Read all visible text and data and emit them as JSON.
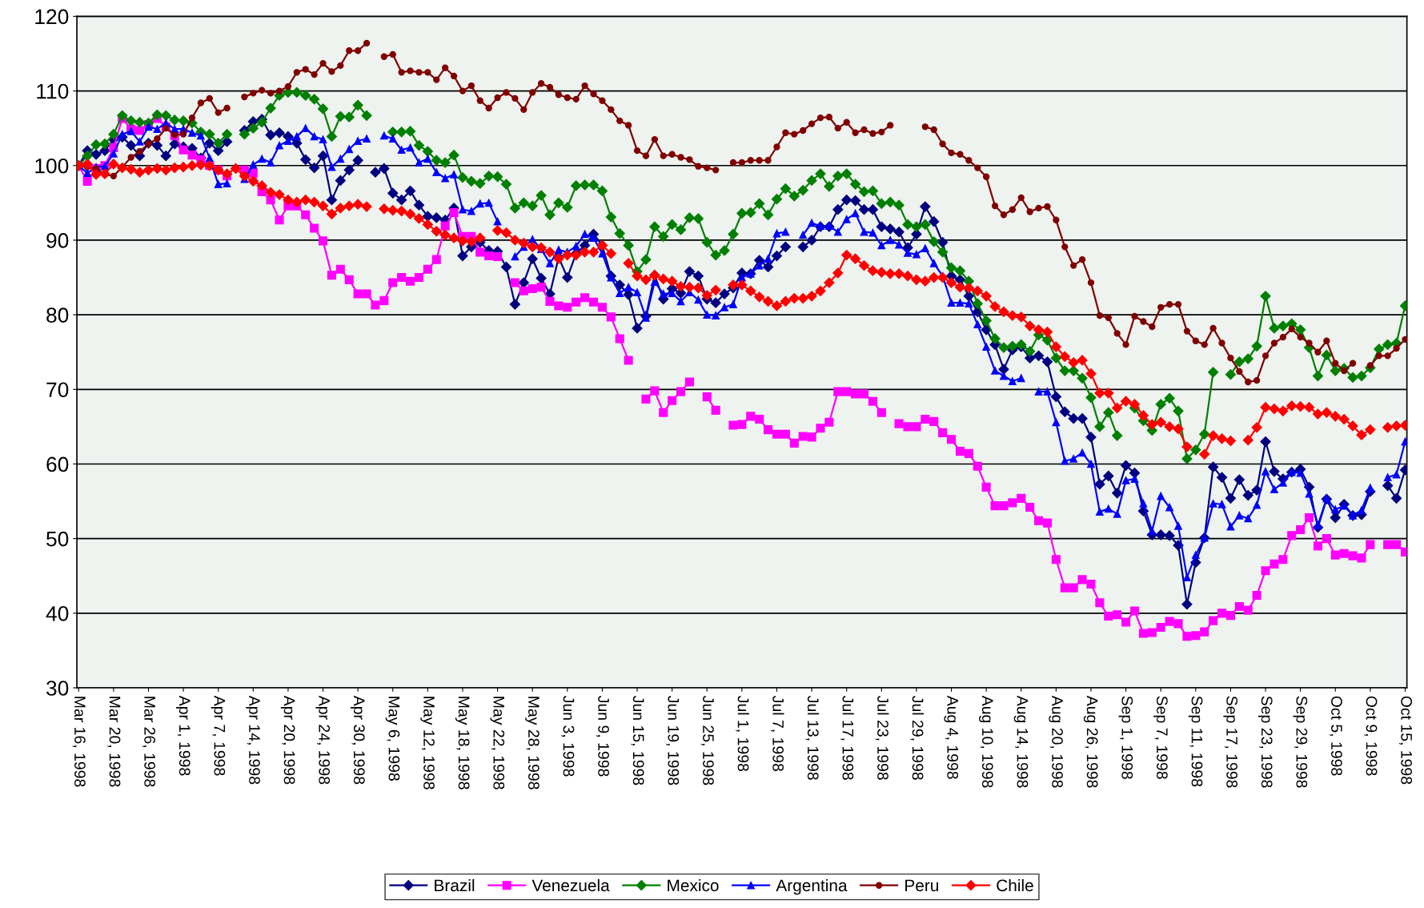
{
  "chart_data": {
    "type": "line",
    "categories": [
      "Mar 16, 1998",
      null,
      null,
      null,
      "Mar 20, 1998",
      null,
      null,
      null,
      "Mar 26, 1998",
      null,
      null,
      null,
      "Apr 1, 1998",
      null,
      null,
      null,
      "Apr 7, 1998",
      null,
      null,
      null,
      "Apr 14, 1998",
      null,
      null,
      null,
      "Apr 20, 1998",
      null,
      null,
      null,
      "Apr 24, 1998",
      null,
      null,
      null,
      "Apr 30, 1998",
      null,
      null,
      null,
      "May 6, 1998",
      null,
      null,
      null,
      "May 12, 1998",
      null,
      null,
      null,
      "May 18, 1998",
      null,
      null,
      null,
      "May 22, 1998",
      null,
      null,
      null,
      "May 28, 1998",
      null,
      null,
      null,
      "Jun 3, 1998",
      null,
      null,
      null,
      "Jun 9, 1998",
      null,
      null,
      null,
      "Jun 15, 1998",
      null,
      null,
      null,
      "Jun 19, 1998",
      null,
      null,
      null,
      "Jun 25, 1998",
      null,
      null,
      null,
      "Jul 1, 1998",
      null,
      null,
      null,
      "Jul 7, 1998",
      null,
      null,
      null,
      "Jul 13, 1998",
      null,
      null,
      null,
      "Jul 17, 1998",
      null,
      null,
      null,
      "Jul 23, 1998",
      null,
      null,
      null,
      "Jul 29, 1998",
      null,
      null,
      null,
      "Aug 4, 1998",
      null,
      null,
      null,
      "Aug 10, 1998",
      null,
      null,
      null,
      "Aug 14, 1998",
      null,
      null,
      null,
      "Aug 20, 1998",
      null,
      null,
      null,
      "Aug 26, 1998",
      null,
      null,
      null,
      "Sep 1, 1998",
      null,
      null,
      null,
      "Sep 7, 1998",
      null,
      null,
      null,
      "Sep 11, 1998",
      null,
      null,
      null,
      "Sep 17, 1998",
      null,
      null,
      null,
      "Sep 23, 1998",
      null,
      null,
      null,
      "Sep 29, 1998",
      null,
      null,
      null,
      "Oct 5, 1998",
      null,
      null,
      null,
      "Oct 9, 1998",
      null,
      null,
      null,
      "Oct 15, 1998"
    ],
    "series": [
      {
        "name": "Brazil",
        "color": "#000080",
        "marker": "diamond",
        "values": [
          100,
          102.0,
          101.5,
          102.0,
          103.5,
          103.8,
          102.7,
          101.3,
          103.0,
          102.7,
          101.3,
          102.9,
          102.5,
          102.3,
          101.0,
          103.0,
          102.0,
          103.2,
          null,
          104.7,
          105.9,
          106.2,
          104.1,
          104.4,
          103.9,
          103.0,
          100.8,
          99.7,
          101.3,
          95.4,
          98.0,
          99.4,
          100.7,
          null,
          99.1,
          99.6,
          96.3,
          95.4,
          96.6,
          94.7,
          93.2,
          93.0,
          92.7,
          94.3,
          87.9,
          89.1,
          89.7,
          88.6,
          88.5,
          86.4,
          81.4,
          84.3,
          87.5,
          84.9,
          82.8,
          87.7,
          85.0,
          88.2,
          89.3,
          90.8,
          89.3,
          85.2,
          84.0,
          82.7,
          78.2,
          79.8,
          85.3,
          82.1,
          83.5,
          82.9,
          85.8,
          85.2,
          82.1,
          81.6,
          82.8,
          83.6,
          85.6,
          85.5,
          87.3,
          86.4,
          87.9,
          89.1,
          null,
          89.1,
          90.0,
          91.8,
          91.8,
          94.1,
          95.4,
          95.3,
          94.1,
          94.1,
          91.8,
          91.5,
          91.1,
          89.0,
          90.8,
          94.5,
          92.5,
          89.7,
          85.2,
          84.7,
          82.5,
          80.4,
          78.0,
          76.0,
          72.7,
          75.3,
          75.7,
          74.2,
          74.5,
          73.7,
          69.0,
          67.0,
          66.1,
          66.1,
          63.6,
          57.3,
          58.4,
          56.1,
          59.8,
          58.8,
          53.7,
          50.5,
          50.5,
          50.4,
          49.1,
          41.2,
          46.8,
          50.1,
          59.6,
          58.2,
          55.4,
          57.9,
          55.8,
          56.5,
          63.0,
          59.0,
          58.0,
          58.9,
          59.3,
          56.9,
          51.5,
          55.3,
          52.8,
          54.6,
          53.1,
          53.2,
          56.3,
          null,
          57.1,
          55.4,
          59.2
        ]
      },
      {
        "name": "Venezuela",
        "color": "#ff00ff",
        "marker": "square",
        "values": [
          100,
          97.9,
          99.6,
          100.0,
          102.4,
          106.3,
          104.9,
          104.7,
          105.5,
          106.3,
          105.2,
          104.0,
          102.1,
          101.4,
          100.8,
          100.0,
          99.4,
          98.6,
          null,
          99.4,
          99.0,
          96.5,
          95.4,
          92.7,
          94.6,
          94.6,
          93.4,
          91.6,
          89.9,
          85.3,
          86.1,
          84.7,
          82.8,
          82.8,
          81.3,
          81.9,
          84.3,
          85.0,
          84.5,
          85.0,
          86.1,
          87.4,
          91.9,
          93.7,
          90.5,
          90.5,
          88.4,
          87.9,
          87.8,
          null,
          84.3,
          83.2,
          83.5,
          83.7,
          81.8,
          81.2,
          81.0,
          81.7,
          82.3,
          81.7,
          81.0,
          79.7,
          76.8,
          73.9,
          null,
          68.7,
          69.8,
          66.9,
          68.5,
          69.7,
          71.0,
          null,
          69.0,
          67.2,
          null,
          65.2,
          65.3,
          66.4,
          66.0,
          64.6,
          64.0,
          64.0,
          62.8,
          63.7,
          63.6,
          64.8,
          65.6,
          69.7,
          69.7,
          69.4,
          69.4,
          68.4,
          66.9,
          null,
          65.4,
          65.0,
          65.0,
          66.0,
          65.7,
          64.2,
          63.3,
          61.7,
          61.4,
          59.7,
          56.9,
          54.4,
          54.4,
          54.8,
          55.4,
          54.2,
          52.4,
          52.1,
          47.2,
          43.4,
          43.4,
          44.5,
          43.9,
          41.4,
          39.6,
          39.8,
          38.8,
          40.3,
          37.3,
          37.4,
          38.1,
          38.9,
          38.6,
          36.9,
          37.0,
          37.5,
          39.0,
          40.0,
          39.7,
          40.9,
          40.4,
          42.4,
          45.7,
          46.6,
          47.2,
          50.4,
          51.2,
          52.8,
          49.0,
          50.0,
          47.8,
          48.0,
          47.7,
          47.4,
          49.2,
          null,
          49.2,
          49.2,
          48.2
        ]
      },
      {
        "name": "Mexico",
        "color": "#008000",
        "marker": "diamond",
        "values": [
          100,
          101.3,
          102.8,
          102.9,
          104.2,
          106.7,
          106.0,
          105.8,
          105.7,
          106.8,
          106.7,
          106.1,
          106.0,
          105.7,
          104.5,
          104.2,
          103.0,
          104.2,
          null,
          104.2,
          105.0,
          105.8,
          107.7,
          109.4,
          109.8,
          109.8,
          109.4,
          108.9,
          107.6,
          103.9,
          106.6,
          106.5,
          108.1,
          106.7,
          null,
          null,
          104.5,
          104.5,
          104.6,
          102.7,
          101.9,
          100.7,
          100.4,
          101.4,
          98.4,
          97.9,
          97.6,
          98.6,
          98.5,
          97.5,
          94.3,
          95.0,
          94.6,
          96.0,
          93.4,
          95.0,
          94.4,
          97.3,
          97.4,
          97.4,
          96.6,
          93.1,
          90.9,
          89.3,
          85.8,
          87.4,
          91.8,
          90.5,
          92.1,
          91.4,
          93.0,
          92.9,
          89.7,
          88.0,
          88.6,
          90.8,
          93.6,
          93.7,
          94.9,
          93.4,
          95.5,
          96.9,
          95.9,
          96.7,
          98.0,
          98.9,
          97.2,
          98.6,
          98.9,
          97.5,
          96.5,
          96.6,
          94.9,
          95.1,
          94.7,
          92.1,
          91.8,
          92.1,
          89.8,
          88.4,
          86.3,
          85.9,
          84.5,
          81.5,
          79.2,
          76.8,
          75.6,
          75.8,
          76.0,
          75.1,
          77.3,
          76.6,
          74.2,
          72.5,
          72.5,
          71.5,
          68.9,
          65.0,
          66.9,
          63.8,
          null,
          67.5,
          65.8,
          64.5,
          68.0,
          68.8,
          67.1,
          60.7,
          61.9,
          64.0,
          72.3,
          null,
          72.0,
          73.7,
          74.1,
          75.8,
          82.5,
          78.2,
          78.5,
          78.8,
          78.0,
          75.6,
          71.8,
          74.6,
          72.5,
          72.8,
          71.6,
          71.8,
          72.9,
          75.4,
          76.0,
          76.2,
          81.2
        ]
      },
      {
        "name": "Argentina",
        "color": "#0000ff",
        "marker": "triangle",
        "values": [
          100,
          99.0,
          99.8,
          99.9,
          101.6,
          104.2,
          104.6,
          103.2,
          105.2,
          104.9,
          105.7,
          104.9,
          104.9,
          104.4,
          104.0,
          101.0,
          97.5,
          97.6,
          null,
          98.2,
          100.1,
          100.9,
          100.4,
          102.7,
          103.3,
          103.9,
          105.0,
          103.9,
          103.5,
          99.8,
          100.9,
          102.2,
          103.3,
          103.6,
          null,
          104.0,
          103.6,
          102.1,
          102.4,
          100.4,
          100.9,
          99.1,
          98.3,
          98.8,
          94.1,
          93.9,
          94.9,
          95.0,
          92.5,
          null,
          87.8,
          89.1,
          90.1,
          88.8,
          86.9,
          88.7,
          88.4,
          89.2,
          90.8,
          90.3,
          88.2,
          85.0,
          82.9,
          83.7,
          83.0,
          79.6,
          84.4,
          82.8,
          82.9,
          81.8,
          83.0,
          82.0,
          80.0,
          79.9,
          81.0,
          81.4,
          85.0,
          85.5,
          86.6,
          87.5,
          90.9,
          91.1,
          null,
          90.7,
          92.3,
          91.9,
          91.9,
          91.1,
          92.8,
          93.6,
          91.1,
          91.0,
          89.3,
          90.0,
          89.4,
          88.3,
          88.1,
          88.9,
          86.9,
          85.2,
          81.6,
          81.6,
          81.5,
          78.7,
          75.7,
          72.5,
          71.8,
          71.1,
          71.5,
          null,
          69.7,
          69.7,
          65.6,
          60.4,
          60.7,
          61.5,
          60.0,
          53.6,
          54.0,
          53.3,
          57.8,
          58.0,
          54.7,
          51.0,
          55.7,
          54.2,
          51.7,
          44.8,
          47.8,
          50.1,
          54.7,
          54.6,
          51.6,
          53.1,
          52.7,
          54.5,
          59.0,
          56.6,
          57.5,
          58.9,
          58.8,
          56.0,
          51.8,
          55.4,
          53.9,
          54.4,
          53.1,
          53.8,
          56.8,
          null,
          58.2,
          58.6,
          63.0
        ]
      },
      {
        "name": "Peru",
        "color": "#800000",
        "marker": "circle",
        "values": [
          100,
          99.8,
          99.6,
          98.8,
          98.6,
          99.8,
          101.1,
          101.9,
          102.9,
          103.6,
          105.0,
          104.1,
          104.2,
          106.4,
          108.4,
          109.0,
          107.1,
          107.7,
          null,
          109.2,
          109.7,
          110.1,
          109.7,
          110.0,
          110.6,
          112.5,
          112.9,
          112.2,
          113.7,
          112.6,
          113.4,
          115.4,
          115.4,
          116.4,
          null,
          114.6,
          114.9,
          112.5,
          112.7,
          112.5,
          112.5,
          111.5,
          113.1,
          112.0,
          110.0,
          110.7,
          108.7,
          107.7,
          109.1,
          109.8,
          109.0,
          107.5,
          109.8,
          111.0,
          110.5,
          109.5,
          109.1,
          108.9,
          110.7,
          109.6,
          108.7,
          107.5,
          106.0,
          105.4,
          102.0,
          101.3,
          103.5,
          101.3,
          101.5,
          101.1,
          100.8,
          99.9,
          99.7,
          99.4,
          null,
          100.4,
          100.4,
          100.7,
          100.7,
          100.7,
          102.5,
          104.4,
          104.2,
          104.7,
          105.6,
          106.4,
          106.5,
          105.0,
          105.8,
          104.4,
          104.8,
          104.3,
          104.5,
          105.4,
          null,
          null,
          null,
          105.2,
          104.8,
          102.9,
          101.7,
          101.5,
          100.7,
          99.7,
          98.5,
          94.6,
          93.4,
          94.1,
          95.7,
          93.8,
          94.3,
          94.5,
          92.7,
          89.1,
          86.6,
          87.4,
          84.3,
          79.9,
          79.6,
          77.5,
          76.0,
          79.8,
          79.1,
          78.4,
          81.0,
          81.4,
          81.4,
          77.8,
          76.5,
          76.0,
          78.2,
          76.2,
          74.2,
          72.4,
          71.0,
          71.2,
          74.5,
          76.2,
          77.0,
          78.1,
          77.0,
          76.2,
          75.0,
          76.5,
          73.5,
          72.5,
          73.5,
          null,
          73.2,
          74.5,
          74.5,
          75.5,
          76.7
        ]
      },
      {
        "name": "Chile",
        "color": "#ff0000",
        "marker": "diamond",
        "values": [
          100.0,
          100.2,
          98.8,
          98.9,
          100.2,
          99.7,
          99.5,
          99.1,
          99.4,
          99.6,
          99.4,
          99.7,
          99.8,
          100.0,
          100.1,
          100.0,
          99.4,
          98.9,
          99.6,
          98.6,
          97.9,
          97.3,
          96.4,
          96.1,
          95.4,
          95.1,
          95.4,
          95.1,
          94.6,
          93.5,
          94.3,
          94.6,
          94.8,
          94.5,
          null,
          94.2,
          94.0,
          93.9,
          93.5,
          92.9,
          92.1,
          91.2,
          90.7,
          90.3,
          89.9,
          89.8,
          90.3,
          null,
          91.3,
          91.0,
          90.0,
          89.6,
          89.1,
          89.0,
          88.4,
          87.5,
          88.0,
          88.0,
          88.4,
          88.4,
          89.3,
          88.2,
          null,
          86.9,
          85.2,
          84.7,
          85.3,
          84.8,
          84.5,
          83.8,
          83.7,
          83.6,
          82.6,
          83.3,
          null,
          84.0,
          84.0,
          83.2,
          82.4,
          81.8,
          81.2,
          81.8,
          82.2,
          82.2,
          82.5,
          83.2,
          84.3,
          85.6,
          88.0,
          87.5,
          86.6,
          85.9,
          85.7,
          85.5,
          85.5,
          85.2,
          84.7,
          84.5,
          85.0,
          85.0,
          84.3,
          83.7,
          83.6,
          83.2,
          82.5,
          81.1,
          80.4,
          79.9,
          79.7,
          78.5,
          78.0,
          77.7,
          75.7,
          74.4,
          73.6,
          73.9,
          72.1,
          69.5,
          69.5,
          67.5,
          68.4,
          68.0,
          66.5,
          65.3,
          65.6,
          65.0,
          64.7,
          62.3,
          null,
          61.3,
          63.8,
          63.4,
          63.1,
          null,
          63.2,
          64.9,
          67.6,
          67.4,
          67.1,
          67.8,
          67.7,
          67.6,
          66.7,
          66.9,
          66.4,
          66.0,
          65.1,
          63.9,
          64.6,
          null,
          64.9,
          65.1,
          65.2
        ]
      }
    ],
    "ylim": [
      30,
      120
    ],
    "yticks": [
      30,
      40,
      50,
      60,
      70,
      80,
      90,
      100,
      110,
      120
    ],
    "grid": "y",
    "legend": "bottom",
    "line_style": "solid"
  }
}
